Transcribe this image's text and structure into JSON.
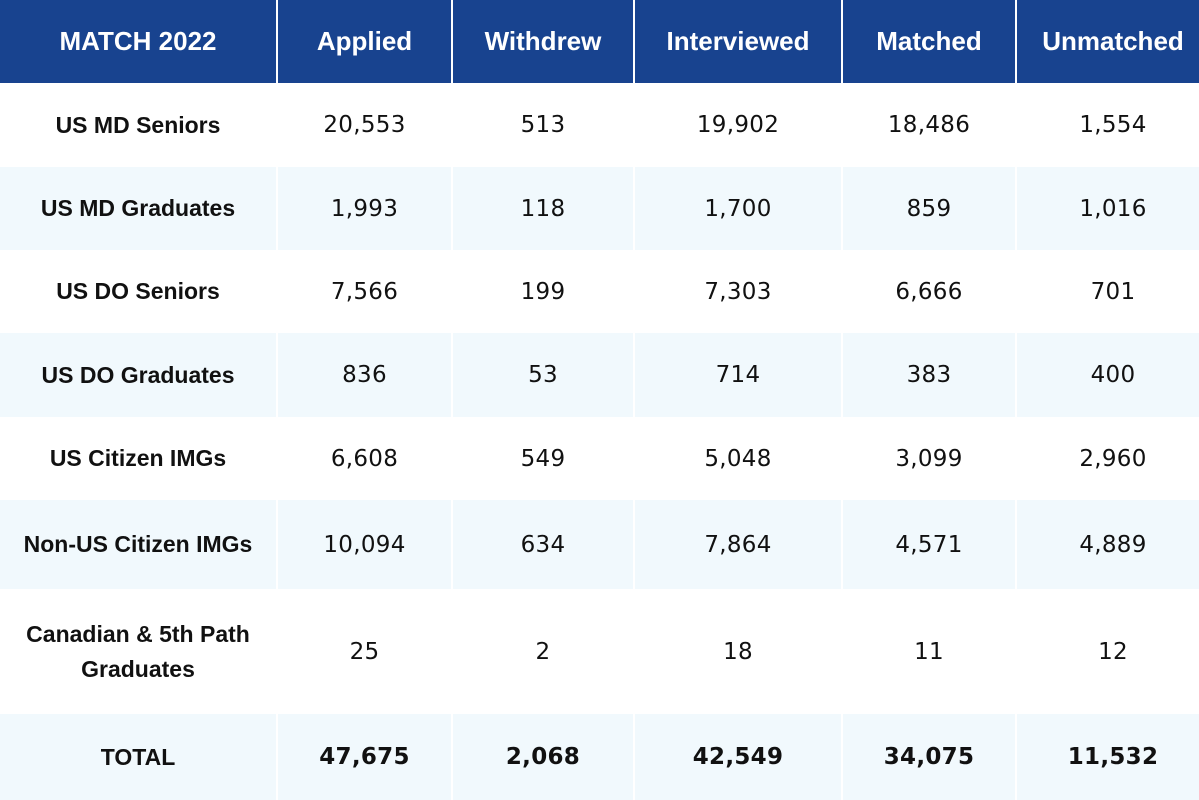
{
  "colors": {
    "header_bg": "#18438f",
    "header_text": "#ffffff",
    "stripe": "#f1f9fd",
    "text": "#111111"
  },
  "table": {
    "headers": [
      "MATCH 2022",
      "Applied",
      "Withdrew",
      "Interviewed",
      "Matched",
      "Unmatched"
    ],
    "rows": [
      {
        "label": "US MD Seniors",
        "values": [
          "20,553",
          "513",
          "19,902",
          "18,486",
          "1,554"
        ]
      },
      {
        "label": "US MD Graduates",
        "values": [
          "1,993",
          "118",
          "1,700",
          "859",
          "1,016"
        ]
      },
      {
        "label": "US DO Seniors",
        "values": [
          "7,566",
          "199",
          "7,303",
          "6,666",
          "701"
        ]
      },
      {
        "label": "US DO Graduates",
        "values": [
          "836",
          "53",
          "714",
          "383",
          "400"
        ]
      },
      {
        "label": "US Citizen IMGs",
        "values": [
          "6,608",
          "549",
          "5,048",
          "3,099",
          "2,960"
        ]
      },
      {
        "label": "Non-US Citizen IMGs",
        "values": [
          "10,094",
          "634",
          "7,864",
          "4,571",
          "4,889"
        ]
      },
      {
        "label": "Canadian & 5th Path Graduates",
        "values": [
          "25",
          "2",
          "18",
          "11",
          "12"
        ]
      }
    ],
    "total": {
      "label": "TOTAL",
      "values": [
        "47,675",
        "2,068",
        "42,549",
        "34,075",
        "11,532"
      ]
    }
  }
}
